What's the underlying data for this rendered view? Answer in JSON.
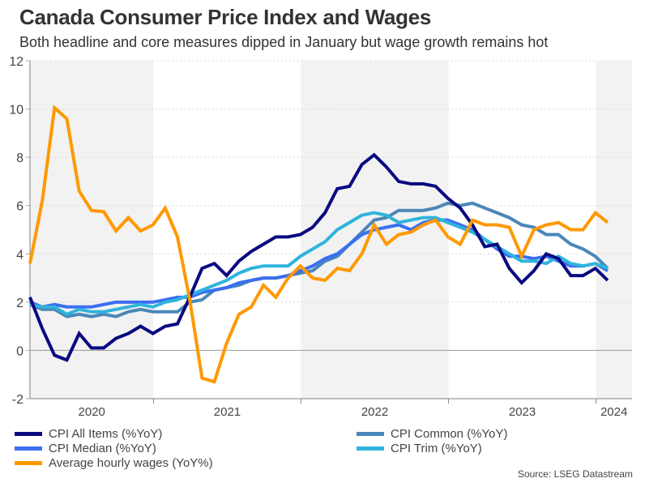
{
  "chart_data": {
    "type": "line",
    "title": "Canada Consumer Price Index and Wages",
    "subtitle": "Both headline and core measures dipped in January but wage growth remains hot",
    "xlabel": "",
    "ylabel": "",
    "ylim": [
      -2,
      12
    ],
    "yticks": [
      -2,
      0,
      2,
      4,
      6,
      8,
      10,
      12
    ],
    "x_start": "2020-02",
    "x_end": "2024-01",
    "xtick_labels": [
      "2020",
      "2021",
      "2022",
      "2023",
      "2024"
    ],
    "shaded_years": [
      "2020",
      "2022",
      "2024"
    ],
    "grid": "horizontal dotted",
    "legend_position": "bottom",
    "series": [
      {
        "name": "CPI All Items (%YoY)",
        "color": "#0a0a80",
        "values": [
          2.2,
          0.9,
          -0.2,
          -0.4,
          0.7,
          0.1,
          0.1,
          0.5,
          0.7,
          1.0,
          0.7,
          1.0,
          1.1,
          2.2,
          3.4,
          3.6,
          3.1,
          3.7,
          4.1,
          4.4,
          4.7,
          4.7,
          4.8,
          5.1,
          5.7,
          6.7,
          6.8,
          7.7,
          8.1,
          7.6,
          7.0,
          6.9,
          6.9,
          6.8,
          6.3,
          5.9,
          5.2,
          4.3,
          4.4,
          3.4,
          2.8,
          3.3,
          4.0,
          3.8,
          3.1,
          3.1,
          3.4,
          2.9
        ]
      },
      {
        "name": "CPI Common (%YoY)",
        "color": "#4a87b8",
        "values": [
          1.9,
          1.7,
          1.7,
          1.4,
          1.5,
          1.4,
          1.5,
          1.4,
          1.6,
          1.7,
          1.6,
          1.6,
          1.6,
          2.0,
          2.1,
          2.5,
          2.6,
          2.7,
          2.9,
          3.0,
          3.0,
          3.1,
          3.2,
          3.3,
          3.7,
          3.9,
          4.4,
          4.9,
          5.4,
          5.5,
          5.8,
          5.8,
          5.8,
          5.9,
          6.1,
          6.0,
          6.1,
          5.9,
          5.7,
          5.5,
          5.2,
          5.1,
          4.8,
          4.8,
          4.4,
          4.2,
          3.9,
          3.4
        ]
      },
      {
        "name": "CPI Median (%YoY)",
        "color": "#3b6ff0",
        "values": [
          2.0,
          1.8,
          1.9,
          1.8,
          1.8,
          1.8,
          1.9,
          2.0,
          2.0,
          2.0,
          2.0,
          2.1,
          2.2,
          2.2,
          2.4,
          2.5,
          2.6,
          2.8,
          2.9,
          3.0,
          3.0,
          3.1,
          3.3,
          3.5,
          3.8,
          4.0,
          4.4,
          4.8,
          5.0,
          5.1,
          5.2,
          5.0,
          5.3,
          5.4,
          5.4,
          5.2,
          5.0,
          4.6,
          4.2,
          3.9,
          3.9,
          3.8,
          3.9,
          3.7,
          3.5,
          3.5,
          3.6,
          3.3
        ]
      },
      {
        "name": "CPI Trim (%YoY)",
        "color": "#2fb4dc",
        "values": [
          1.9,
          1.8,
          1.8,
          1.5,
          1.7,
          1.6,
          1.6,
          1.7,
          1.8,
          1.9,
          1.8,
          2.0,
          2.1,
          2.3,
          2.5,
          2.7,
          2.9,
          3.2,
          3.4,
          3.5,
          3.5,
          3.5,
          3.9,
          4.2,
          4.5,
          5.0,
          5.3,
          5.6,
          5.7,
          5.6,
          5.3,
          5.4,
          5.5,
          5.5,
          5.3,
          5.1,
          4.9,
          4.6,
          4.3,
          4.0,
          3.7,
          3.7,
          3.6,
          3.9,
          3.6,
          3.5,
          3.6,
          3.4
        ]
      },
      {
        "name": "Average hourly wages (YoY%)",
        "color": "#ff9900",
        "values": [
          3.6,
          6.2,
          10.05,
          9.6,
          6.6,
          5.8,
          5.75,
          4.95,
          5.5,
          4.95,
          5.2,
          5.9,
          4.7,
          2.1,
          -1.15,
          -1.3,
          0.3,
          1.5,
          1.8,
          2.7,
          2.2,
          3.0,
          3.5,
          3.0,
          2.9,
          3.4,
          3.3,
          4.0,
          5.2,
          4.4,
          4.8,
          4.9,
          5.2,
          5.4,
          4.7,
          4.4,
          5.4,
          5.2,
          5.2,
          5.1,
          3.9,
          5.0,
          5.2,
          5.3,
          5.0,
          5.0,
          5.7,
          5.3
        ]
      }
    ],
    "source": "Source: LSEG Datastream"
  },
  "legend": {
    "left": [
      {
        "label": "CPI All Items (%YoY)",
        "color": "#0a0a80"
      },
      {
        "label": "CPI Median (%YoY)",
        "color": "#3b6ff0"
      },
      {
        "label": "Average hourly wages (YoY%)",
        "color": "#ff9900"
      }
    ],
    "right": [
      {
        "label": "CPI Common (%YoY)",
        "color": "#4a87b8"
      },
      {
        "label": "CPI Trim (%YoY)",
        "color": "#2fb4dc"
      }
    ]
  }
}
